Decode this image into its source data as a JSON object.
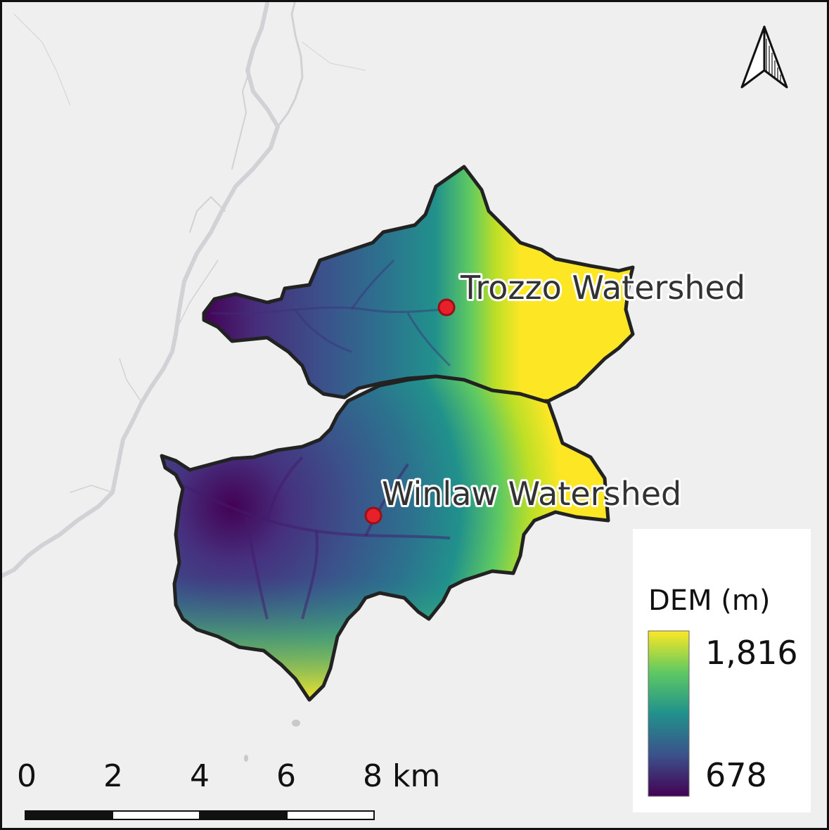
{
  "map": {
    "labels": {
      "trozzo": "Trozzo Watershed",
      "winlaw": "Winlaw Watershed"
    },
    "legend": {
      "title": "DEM (m)",
      "max_label": "1,816",
      "min_label": "678",
      "ramp_colors": [
        "#440154",
        "#3b528b",
        "#21918c",
        "#5ec962",
        "#fde725"
      ]
    },
    "scale_bar": {
      "tick_labels": [
        "0",
        "2",
        "4",
        "6",
        "8 km"
      ]
    },
    "north_arrow": "north-arrow-icon",
    "colors": {
      "background": "#efefef",
      "boundary": "#222222",
      "outlet_fill": "#e8202a",
      "outlet_stroke": "#9a1016",
      "river": "#d2d2d6"
    }
  }
}
